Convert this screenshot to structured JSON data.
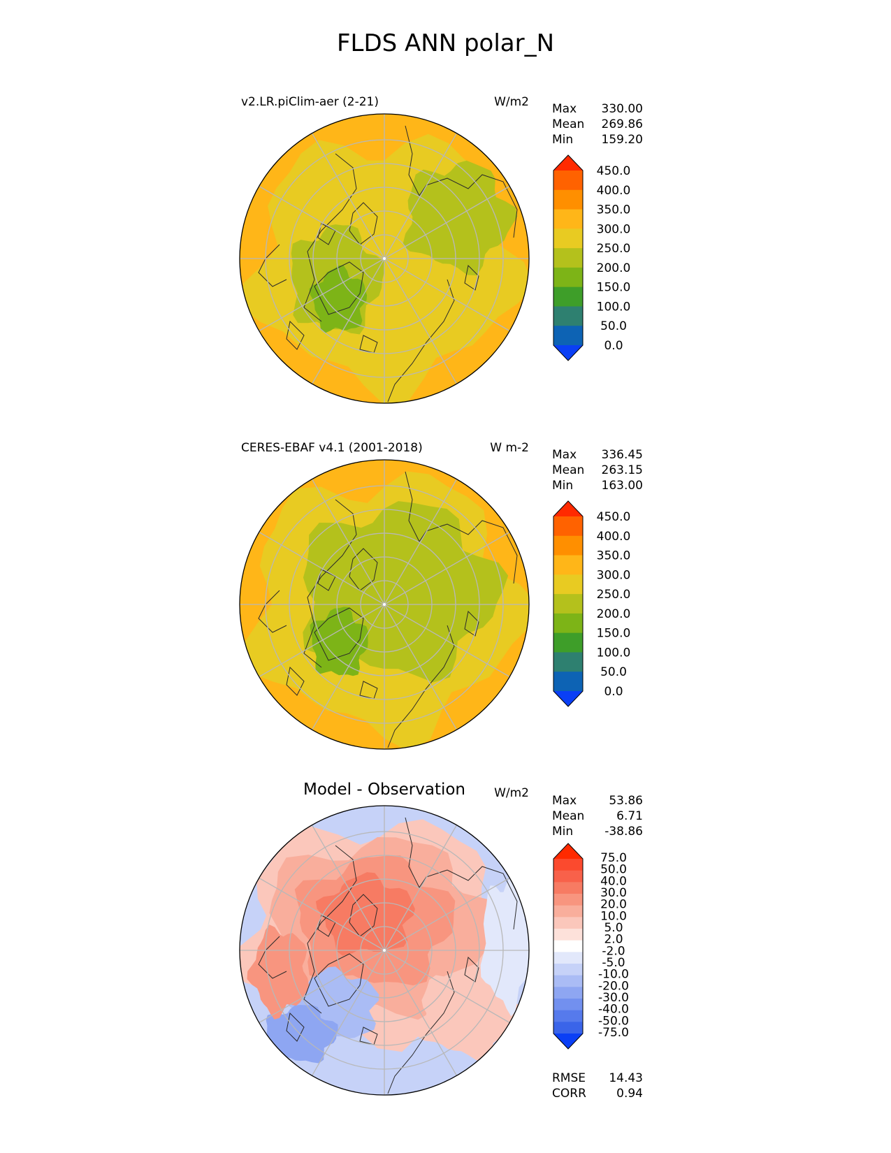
{
  "title": "FLDS ANN polar_N",
  "panels": [
    {
      "left_title": "v2.LR.piClim-aer (2-21)",
      "center_title": "",
      "units": "W/m2",
      "stats": [
        {
          "label": "Max",
          "value": "330.00"
        },
        {
          "label": "Mean",
          "value": "269.86"
        },
        {
          "label": "Min",
          "value": "159.20"
        }
      ],
      "colorbar": {
        "labels": [
          "450.0",
          "400.0",
          "350.0",
          "300.0",
          "250.0",
          "200.0",
          "150.0",
          "100.0",
          "50.0",
          "0.0"
        ],
        "colors": [
          "#ff2a00",
          "#ff6200",
          "#ff8f00",
          "#ffb618",
          "#e8cb22",
          "#b4c11c",
          "#7db417",
          "#3e9e29",
          "#2e8070",
          "#0d63b4",
          "#0a3ff5"
        ]
      }
    },
    {
      "left_title": "CERES-EBAF v4.1 (2001-2018)",
      "center_title": "",
      "units": "W m-2",
      "stats": [
        {
          "label": "Max",
          "value": "336.45"
        },
        {
          "label": "Mean",
          "value": "263.15"
        },
        {
          "label": "Min",
          "value": "163.00"
        }
      ],
      "colorbar": {
        "labels": [
          "450.0",
          "400.0",
          "350.0",
          "300.0",
          "250.0",
          "200.0",
          "150.0",
          "100.0",
          "50.0",
          "0.0"
        ],
        "colors": [
          "#ff2a00",
          "#ff6200",
          "#ff8f00",
          "#ffb618",
          "#e8cb22",
          "#b4c11c",
          "#7db417",
          "#3e9e29",
          "#2e8070",
          "#0d63b4",
          "#0a3ff5"
        ]
      }
    },
    {
      "left_title": "",
      "center_title": "Model - Observation",
      "units": "W/m2",
      "stats": [
        {
          "label": "Max",
          "value": "53.86"
        },
        {
          "label": "Mean",
          "value": "6.71"
        },
        {
          "label": "Min",
          "value": "-38.86"
        }
      ],
      "colorbar": {
        "labels": [
          "75.0",
          "50.0",
          "40.0",
          "30.0",
          "20.0",
          "10.0",
          "5.0",
          "2.0",
          "-2.0",
          "-5.0",
          "-10.0",
          "-20.0",
          "-30.0",
          "-40.0",
          "-50.0",
          "-75.0"
        ],
        "colors": [
          "#ff2a00",
          "#fb4a2e",
          "#f8614a",
          "#f77b63",
          "#f8957f",
          "#f9ae9c",
          "#fbc7bb",
          "#fde1da",
          "#ffffff",
          "#e2e8fb",
          "#c6d2f8",
          "#aabcf5",
          "#8ea6f2",
          "#7290ef",
          "#567aec",
          "#3a64e9",
          "#0a3ff5"
        ]
      },
      "footer_stats": [
        {
          "label": "RMSE",
          "value": "14.43"
        },
        {
          "label": "CORR",
          "value": "0.94"
        }
      ]
    }
  ]
}
